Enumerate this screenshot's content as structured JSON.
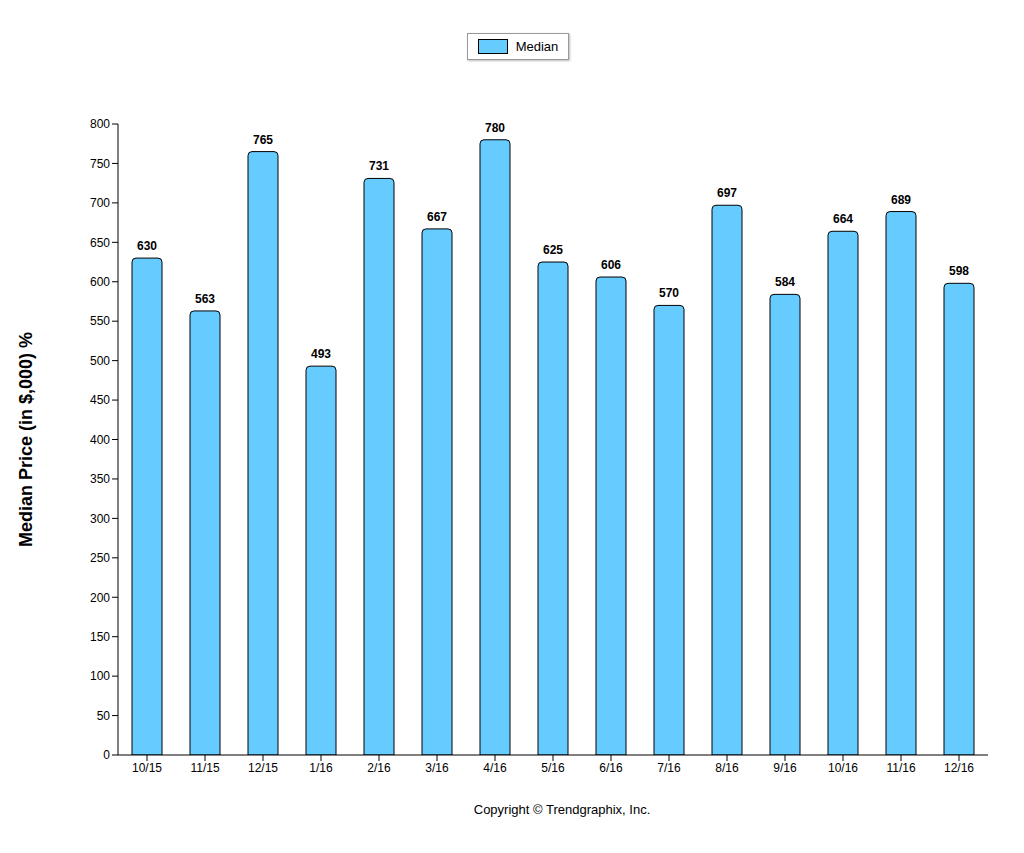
{
  "chart_data": {
    "type": "bar",
    "y_label": "Median Price (in $,000) %",
    "categories": [
      "10/15",
      "11/15",
      "12/15",
      "1/16",
      "2/16",
      "3/16",
      "4/16",
      "5/16",
      "6/16",
      "7/16",
      "8/16",
      "9/16",
      "10/16",
      "11/16",
      "12/16"
    ],
    "series": [
      {
        "name": "Median",
        "color": "#66ccff",
        "values": [
          630,
          563,
          765,
          493,
          731,
          667,
          780,
          625,
          606,
          570,
          697,
          584,
          664,
          689,
          598
        ]
      }
    ],
    "ylim": [
      0,
      800
    ],
    "yticks": [
      0,
      50,
      100,
      150,
      200,
      250,
      300,
      350,
      400,
      450,
      500,
      550,
      600,
      650,
      700,
      750,
      800
    ],
    "grid": false,
    "legend": "top",
    "data_labels": true,
    "annotations": [
      "Copyright © Trendgraphix, Inc."
    ]
  }
}
